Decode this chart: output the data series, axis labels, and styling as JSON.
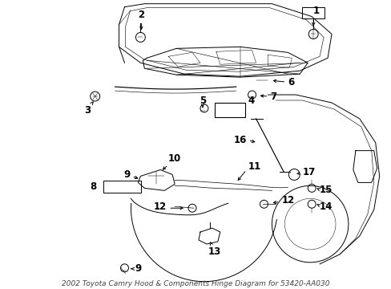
{
  "bg_color": "#ffffff",
  "line_color": "#000000",
  "fig_width": 4.89,
  "fig_height": 3.6,
  "dpi": 100,
  "footnote": "2002 Toyota Camry Hood & Components Hinge Diagram for 53420-AA030",
  "label_fs": 8.5,
  "small_fs": 6.5
}
